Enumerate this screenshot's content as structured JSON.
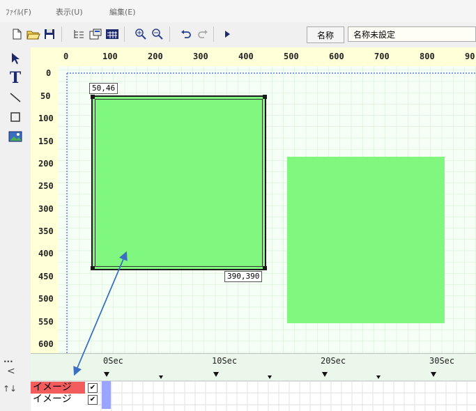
{
  "menubar": {
    "items": [
      {
        "label": "ﾌｧｲﾙ(F)"
      },
      {
        "label": "表示(U)"
      },
      {
        "label": "編集(E)"
      }
    ]
  },
  "toolbar": {
    "buttons": [
      {
        "icon": "new-file-icon"
      },
      {
        "icon": "open-folder-icon"
      },
      {
        "icon": "save-icon"
      },
      {
        "icon": "tree-list-icon"
      },
      {
        "icon": "properties-icon"
      },
      {
        "icon": "table-icon"
      },
      {
        "icon": "zoom-in-icon"
      },
      {
        "icon": "zoom-out-icon"
      },
      {
        "icon": "undo-icon"
      },
      {
        "icon": "redo-icon"
      },
      {
        "icon": "play-icon"
      }
    ],
    "name_label": "名称",
    "name_value": "名称未設定"
  },
  "tools": [
    {
      "icon": "select-arrow-icon"
    },
    {
      "icon": "text-tool-icon"
    },
    {
      "icon": "line-tool-icon"
    },
    {
      "icon": "rectangle-tool-icon"
    },
    {
      "icon": "image-tool-icon"
    }
  ],
  "ruler": {
    "x_ticks": [
      "0",
      "100",
      "200",
      "300",
      "400",
      "500",
      "600",
      "700",
      "800",
      "90"
    ],
    "y_ticks": [
      "0",
      "50",
      "100",
      "150",
      "200",
      "250",
      "300",
      "350",
      "400",
      "450",
      "500",
      "550",
      "600"
    ]
  },
  "canvas": {
    "shape_fill": "#80f880",
    "selected_start_label": "50,46",
    "selected_end_label": "390,390"
  },
  "timeline": {
    "more_label": "...",
    "collapse_label": "<",
    "sort_label": "↑↓",
    "time_marks": [
      "0Sec",
      "10Sec",
      "20Sec",
      "30Sec"
    ],
    "layers": [
      {
        "name": "イメージ",
        "checked": "✔",
        "active": true
      },
      {
        "name": "イメージ",
        "checked": "✔",
        "active": false
      }
    ]
  }
}
